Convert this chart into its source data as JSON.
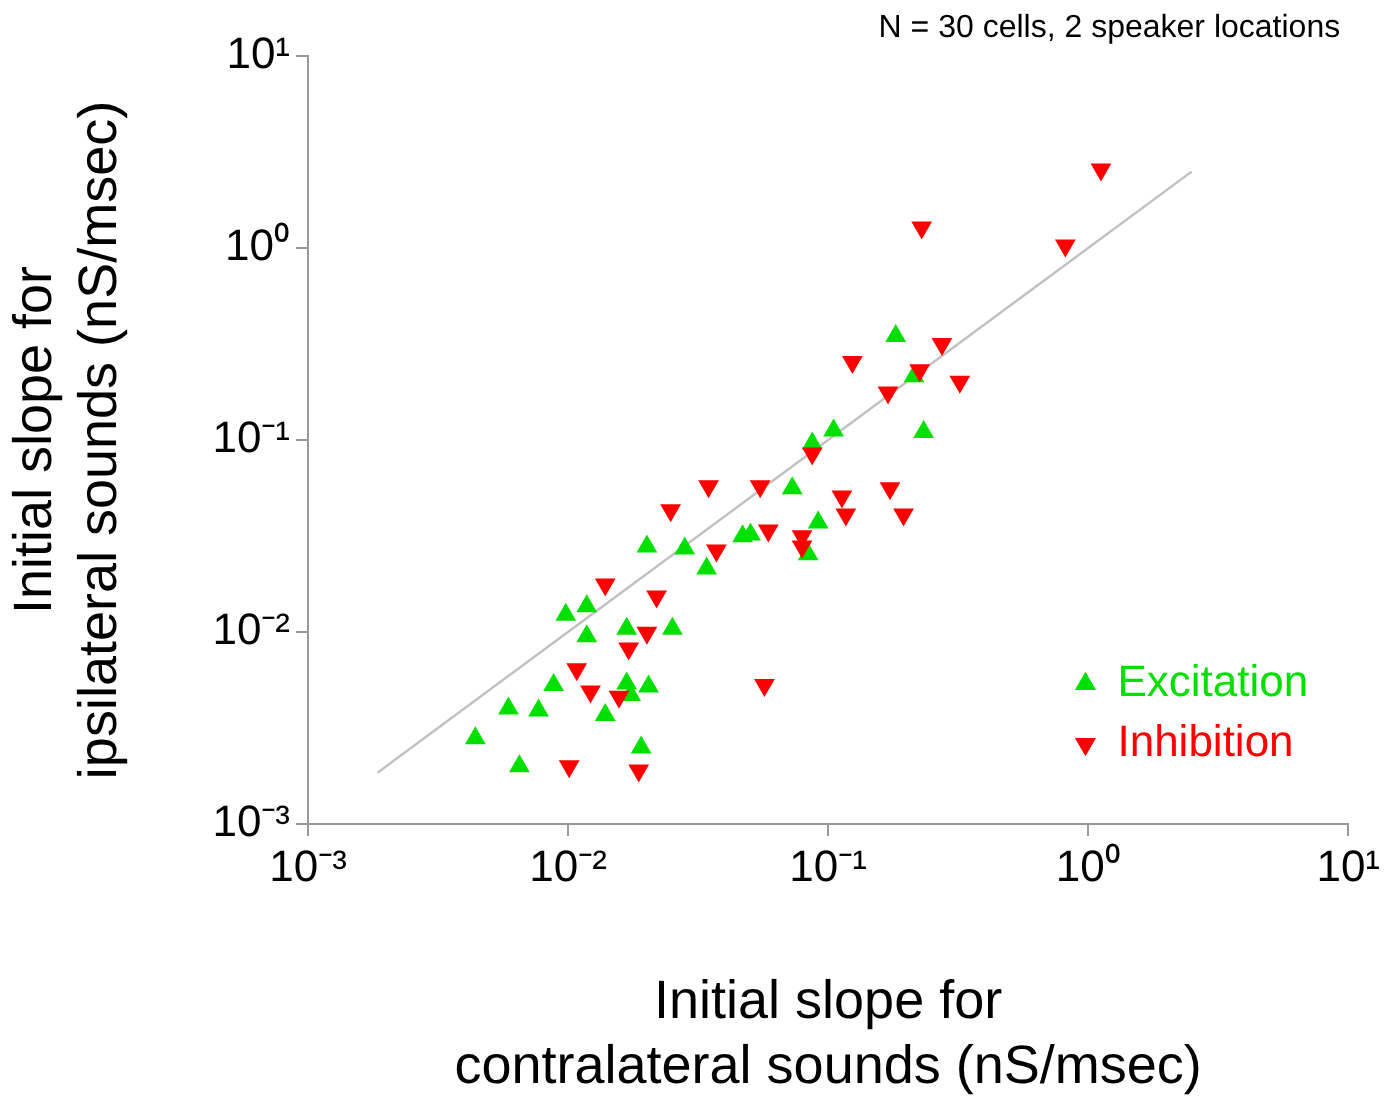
{
  "chart_data": {
    "type": "scatter",
    "xlabel": "Initial slope for contralateral sounds (nS/msec)",
    "ylabel": "Initial slope for ipsilateral sounds (nS/msec)",
    "annotations": [
      "N = 30 cells, 2 speaker locations"
    ],
    "log": "xy",
    "xlim": [
      0.001,
      10
    ],
    "ylim": [
      0.001,
      10
    ],
    "xticks": [
      {
        "value": 0.001,
        "label": "10⁻³"
      },
      {
        "value": 0.01,
        "label": "10⁻²"
      },
      {
        "value": 0.1,
        "label": "10⁻¹"
      },
      {
        "value": 1,
        "label": "10⁰"
      },
      {
        "value": 10,
        "label": "10¹"
      }
    ],
    "yticks": [
      {
        "value": 0.001,
        "label": "10⁻³"
      },
      {
        "value": 0.01,
        "label": "10⁻²"
      },
      {
        "value": 0.1,
        "label": "10⁻¹"
      },
      {
        "value": 1,
        "label": "10⁰"
      },
      {
        "value": 10,
        "label": "10¹"
      }
    ],
    "legend": "bottom right",
    "series": [
      {
        "type": "line",
        "color": "#c0c0c0",
        "marker": "none",
        "x": [
          0.00185,
          2.5
        ],
        "values": [
          0.00185,
          2.5
        ]
      },
      {
        "name": "Excitation",
        "color": "#00e000",
        "marker": "triangle",
        "x": [
          0.0044,
          0.0065,
          0.0059,
          0.0077,
          0.0088,
          0.0098,
          0.0118,
          0.0118,
          0.0139,
          0.0168,
          0.0168,
          0.0174,
          0.0191,
          0.0204,
          0.0201,
          0.0252,
          0.0281,
          0.0341,
          0.0469,
          0.0503,
          0.0728,
          0.0869,
          0.0838,
          0.0916,
          0.105,
          0.182,
          0.214,
          0.233
        ],
        "values": [
          0.0028,
          0.002,
          0.004,
          0.0039,
          0.0053,
          0.0123,
          0.0136,
          0.0095,
          0.0037,
          0.0104,
          0.0054,
          0.0047,
          0.0025,
          0.0052,
          0.0279,
          0.0104,
          0.0272,
          0.0214,
          0.0315,
          0.0322,
          0.056,
          0.096,
          0.0254,
          0.0372,
          0.112,
          0.348,
          0.215,
          0.11
        ]
      },
      {
        "name": "Inhibition",
        "color": "#ff0000",
        "marker": "triangle-down",
        "x": [
          0.0101,
          0.0187,
          0.0108,
          0.0122,
          0.0157,
          0.0171,
          0.0201,
          0.0139,
          0.0219,
          0.0248,
          0.0347,
          0.0548,
          0.0372,
          0.0589,
          0.0569,
          0.0794,
          0.0794,
          0.0869,
          0.113,
          0.117,
          0.173,
          0.195,
          0.124,
          0.17,
          0.225,
          0.274,
          0.321,
          0.229,
          0.817,
          1.12
        ],
        "values": [
          0.002,
          0.0019,
          0.0064,
          0.0049,
          0.0046,
          0.0082,
          0.0099,
          0.0177,
          0.0153,
          0.043,
          0.0574,
          0.0574,
          0.0266,
          0.0338,
          0.0053,
          0.0315,
          0.0279,
          0.085,
          0.0508,
          0.0409,
          0.056,
          0.0409,
          0.255,
          0.177,
          0.231,
          0.316,
          0.201,
          1.28,
          1.03,
          2.56
        ]
      }
    ]
  }
}
